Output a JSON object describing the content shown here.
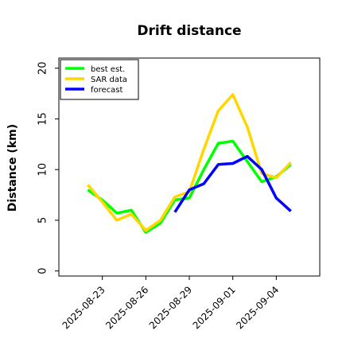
{
  "chart_data": {
    "type": "line",
    "title": "Drift distance",
    "xlabel": "",
    "ylabel": "Distance (km)",
    "ylim": [
      -0.5,
      21
    ],
    "xlim": [
      "2025-08-20",
      "2025-09-07"
    ],
    "yticks": [
      0,
      5,
      10,
      15,
      20
    ],
    "xticks": [
      "2025-08-23",
      "2025-08-26",
      "2025-08-29",
      "2025-09-01",
      "2025-09-04"
    ],
    "grid": false,
    "legend_position": "top-left",
    "series": [
      {
        "name": "best est.",
        "color": "#00ff00",
        "x": [
          "2025-08-22",
          "2025-08-23",
          "2025-08-24",
          "2025-08-25",
          "2025-08-26",
          "2025-08-27",
          "2025-08-28",
          "2025-08-29",
          "2025-08-30",
          "2025-08-31",
          "2025-09-01",
          "2025-09-02",
          "2025-09-03",
          "2025-09-04",
          "2025-09-05"
        ],
        "values": [
          8.0,
          7.0,
          5.7,
          6.0,
          3.8,
          4.7,
          7.0,
          7.2,
          10.0,
          12.6,
          12.8,
          10.8,
          8.8,
          9.3,
          10.5
        ]
      },
      {
        "name": "SAR data",
        "color": "#ffd700",
        "x": [
          "2025-08-22",
          "2025-08-23",
          "2025-08-24",
          "2025-08-25",
          "2025-08-26",
          "2025-08-27",
          "2025-08-28",
          "2025-08-29",
          "2025-08-30",
          "2025-08-31",
          "2025-09-01",
          "2025-09-02",
          "2025-09-03",
          "2025-09-04",
          "2025-09-05"
        ],
        "values": [
          8.5,
          6.8,
          5.0,
          5.6,
          4.0,
          5.0,
          7.3,
          7.8,
          12.0,
          15.8,
          17.4,
          14.2,
          9.6,
          9.2,
          10.7
        ]
      },
      {
        "name": "forecast",
        "color": "#0000ff",
        "x": [
          "2025-08-28",
          "2025-08-29",
          "2025-08-30",
          "2025-08-31",
          "2025-09-01",
          "2025-09-02",
          "2025-09-03",
          "2025-09-04",
          "2025-09-05"
        ],
        "values": [
          5.8,
          8.0,
          8.6,
          10.5,
          10.6,
          11.3,
          10.0,
          7.2,
          5.9
        ]
      }
    ]
  }
}
